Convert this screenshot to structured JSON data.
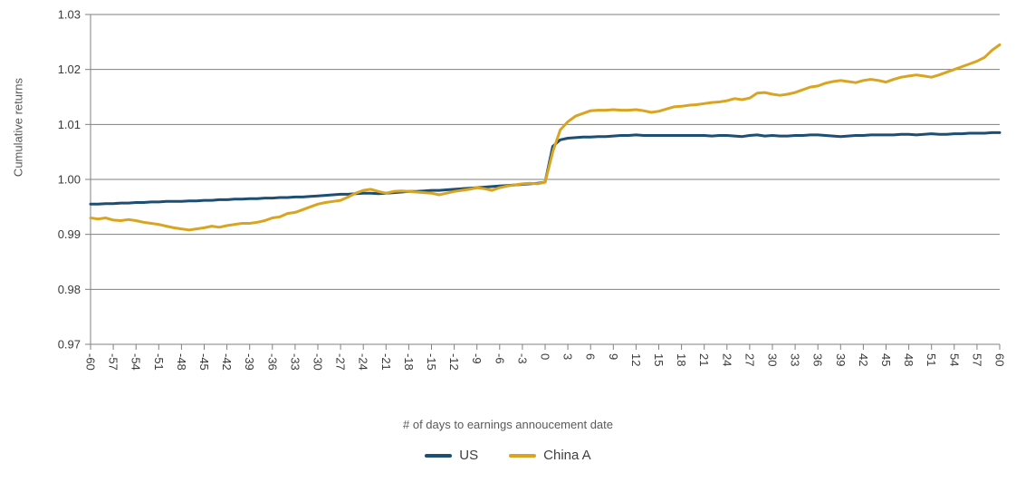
{
  "chart_data": {
    "type": "line",
    "title": "",
    "ylabel": "Cumulative returns",
    "xlabel": "# of days to earnings annoucement date",
    "x_start": -60,
    "x_end": 60,
    "x_step": 1,
    "xtick_step": 3,
    "xtick_labels": [
      "-60",
      "-57",
      "-54",
      "-51",
      "-48",
      "-45",
      "-42",
      "-39",
      "-36",
      "-33",
      "-30",
      "-27",
      "-24",
      "-21",
      "-18",
      "-15",
      "-12",
      "-9",
      "-6",
      "-3",
      "0",
      "3",
      "6",
      "9",
      "12",
      "15",
      "18",
      "21",
      "24",
      "27",
      "30",
      "33",
      "36",
      "39",
      "42",
      "45",
      "48",
      "51",
      "54",
      "57",
      "60"
    ],
    "yticks": [
      "0.97",
      "0.98",
      "0.99",
      "1.00",
      "1.01",
      "1.02",
      "1.03"
    ],
    "ylim": [
      0.97,
      1.03
    ],
    "grid": "horizontal",
    "legend_position": "bottom-center",
    "colors": {
      "us": "#1d4e74",
      "china_a": "#d9a521",
      "axis": "#808080"
    },
    "series": [
      {
        "name": "US",
        "color": "#1d4e74",
        "values": [
          0.9955,
          0.9955,
          0.9956,
          0.9956,
          0.9957,
          0.9957,
          0.9958,
          0.9958,
          0.9959,
          0.9959,
          0.996,
          0.996,
          0.996,
          0.9961,
          0.9961,
          0.9962,
          0.9962,
          0.9963,
          0.9963,
          0.9964,
          0.9964,
          0.9965,
          0.9965,
          0.9966,
          0.9966,
          0.9967,
          0.9967,
          0.9968,
          0.9968,
          0.9969,
          0.997,
          0.9971,
          0.9972,
          0.9973,
          0.9973,
          0.9974,
          0.9975,
          0.9975,
          0.9974,
          0.9975,
          0.9976,
          0.9977,
          0.9978,
          0.9978,
          0.9979,
          0.998,
          0.998,
          0.9981,
          0.9982,
          0.9983,
          0.9984,
          0.9985,
          0.9986,
          0.9987,
          0.9988,
          0.9989,
          0.999,
          0.9991,
          0.9992,
          0.9993,
          0.9995,
          1.006,
          1.0072,
          1.0075,
          1.0076,
          1.0077,
          1.0077,
          1.0078,
          1.0078,
          1.0079,
          1.008,
          1.008,
          1.0081,
          1.008,
          1.008,
          1.008,
          1.008,
          1.008,
          1.008,
          1.008,
          1.008,
          1.008,
          1.0079,
          1.008,
          1.008,
          1.0079,
          1.0078,
          1.008,
          1.0081,
          1.0079,
          1.008,
          1.0079,
          1.0079,
          1.008,
          1.008,
          1.0081,
          1.0081,
          1.008,
          1.0079,
          1.0078,
          1.0079,
          1.008,
          1.008,
          1.0081,
          1.0081,
          1.0081,
          1.0081,
          1.0082,
          1.0082,
          1.0081,
          1.0082,
          1.0083,
          1.0082,
          1.0082,
          1.0083,
          1.0083,
          1.0084,
          1.0084,
          1.0084,
          1.0085,
          1.0085
        ]
      },
      {
        "name": "China A",
        "color": "#d9a521",
        "values": [
          0.993,
          0.9928,
          0.993,
          0.9926,
          0.9925,
          0.9927,
          0.9925,
          0.9922,
          0.992,
          0.9918,
          0.9915,
          0.9912,
          0.991,
          0.9908,
          0.991,
          0.9912,
          0.9915,
          0.9913,
          0.9916,
          0.9918,
          0.992,
          0.992,
          0.9922,
          0.9925,
          0.993,
          0.9932,
          0.9938,
          0.994,
          0.9945,
          0.995,
          0.9955,
          0.9958,
          0.996,
          0.9962,
          0.9968,
          0.9975,
          0.998,
          0.9982,
          0.9978,
          0.9975,
          0.9978,
          0.9979,
          0.9978,
          0.9977,
          0.9976,
          0.9975,
          0.9972,
          0.9975,
          0.9978,
          0.998,
          0.9982,
          0.9985,
          0.9983,
          0.998,
          0.9985,
          0.9988,
          0.999,
          0.9992,
          0.9993,
          0.9992,
          0.9995,
          1.005,
          1.009,
          1.0105,
          1.0115,
          1.012,
          1.0125,
          1.0126,
          1.0126,
          1.0127,
          1.0126,
          1.0126,
          1.0127,
          1.0125,
          1.0122,
          1.0124,
          1.0128,
          1.0132,
          1.0133,
          1.0135,
          1.0136,
          1.0138,
          1.014,
          1.0141,
          1.0143,
          1.0147,
          1.0145,
          1.0148,
          1.0157,
          1.0158,
          1.0155,
          1.0153,
          1.0155,
          1.0158,
          1.0163,
          1.0168,
          1.017,
          1.0175,
          1.0178,
          1.018,
          1.0178,
          1.0176,
          1.018,
          1.0182,
          1.018,
          1.0177,
          1.0182,
          1.0186,
          1.0188,
          1.019,
          1.0188,
          1.0186,
          1.019,
          1.0195,
          1.02,
          1.0205,
          1.021,
          1.0215,
          1.0222,
          1.0235,
          1.0245
        ]
      }
    ]
  }
}
